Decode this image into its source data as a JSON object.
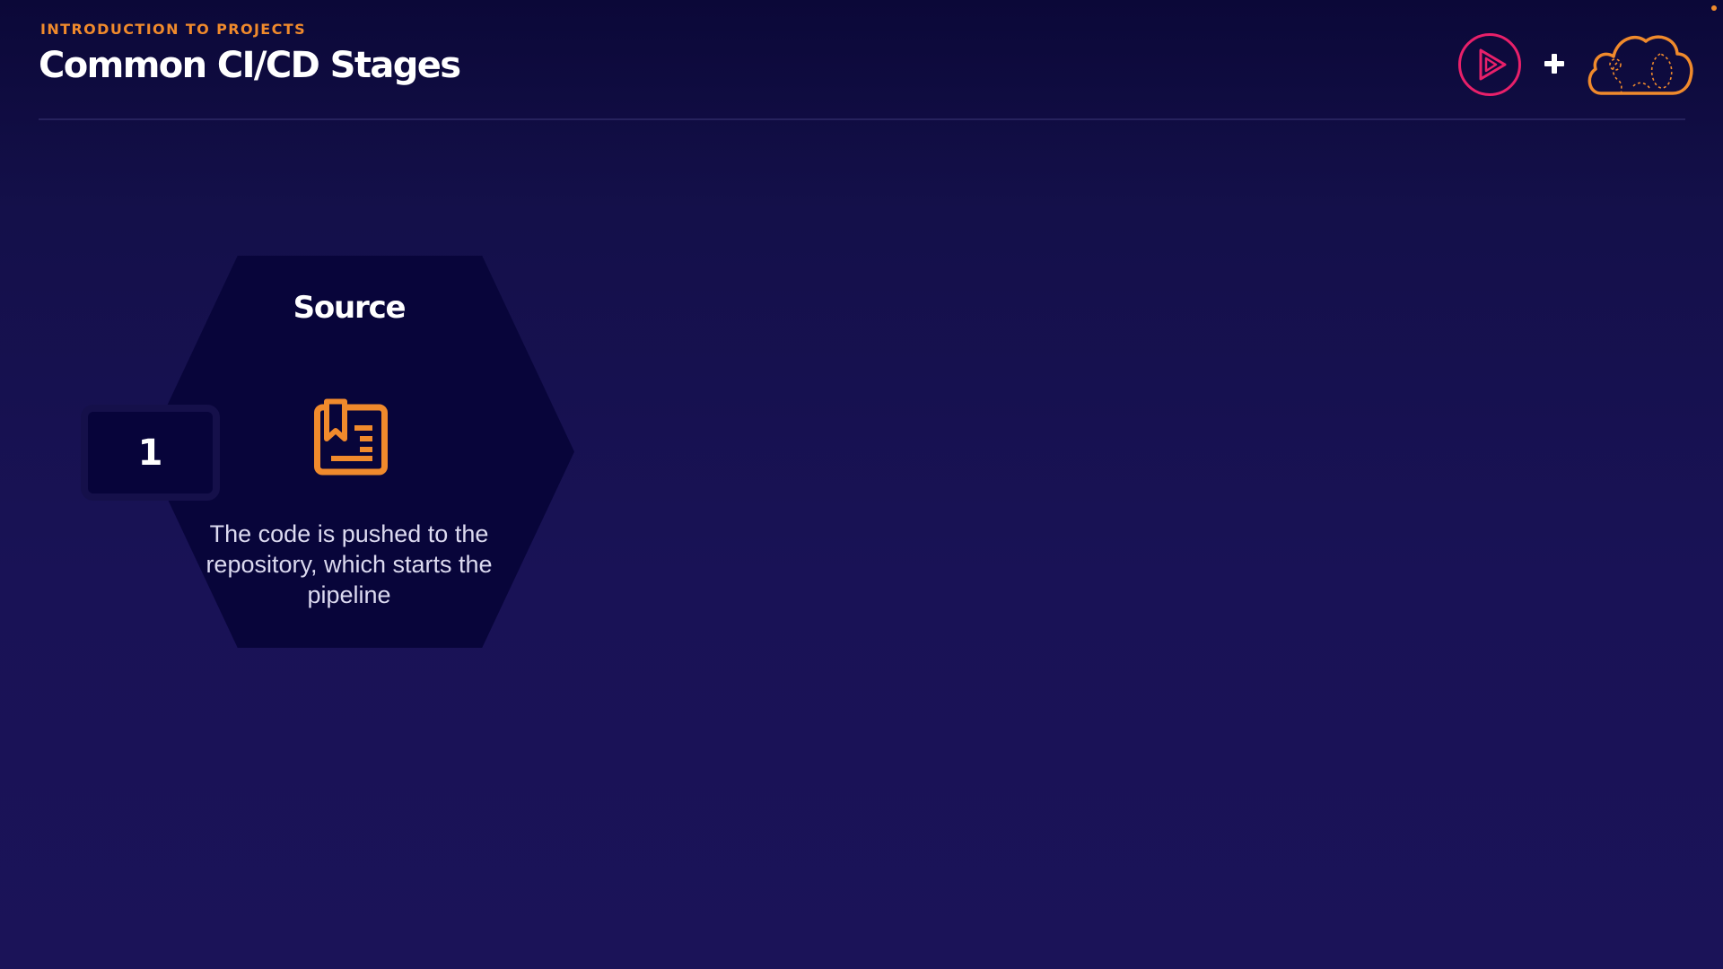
{
  "header": {
    "eyebrow": "INTRODUCTION TO PROJECTS",
    "title": "Common CI/CD Stages"
  },
  "logos": {
    "play": {
      "icon": "play-circle-logo-icon",
      "color": "#e8206a"
    },
    "plus": {
      "icon": "plus-icon",
      "color": "#ffffff"
    },
    "cloud": {
      "icon": "cloud-logo-icon",
      "color": "#f08a2c"
    }
  },
  "stage": {
    "number": "1",
    "title": "Source",
    "icon": "repository-document-icon",
    "description": "The code is pushed to the repository, which starts the pipeline"
  },
  "colors": {
    "background": "#191256",
    "accent": "#f08a2c",
    "hex_fill": "#08053a",
    "text": "#ffffff"
  }
}
